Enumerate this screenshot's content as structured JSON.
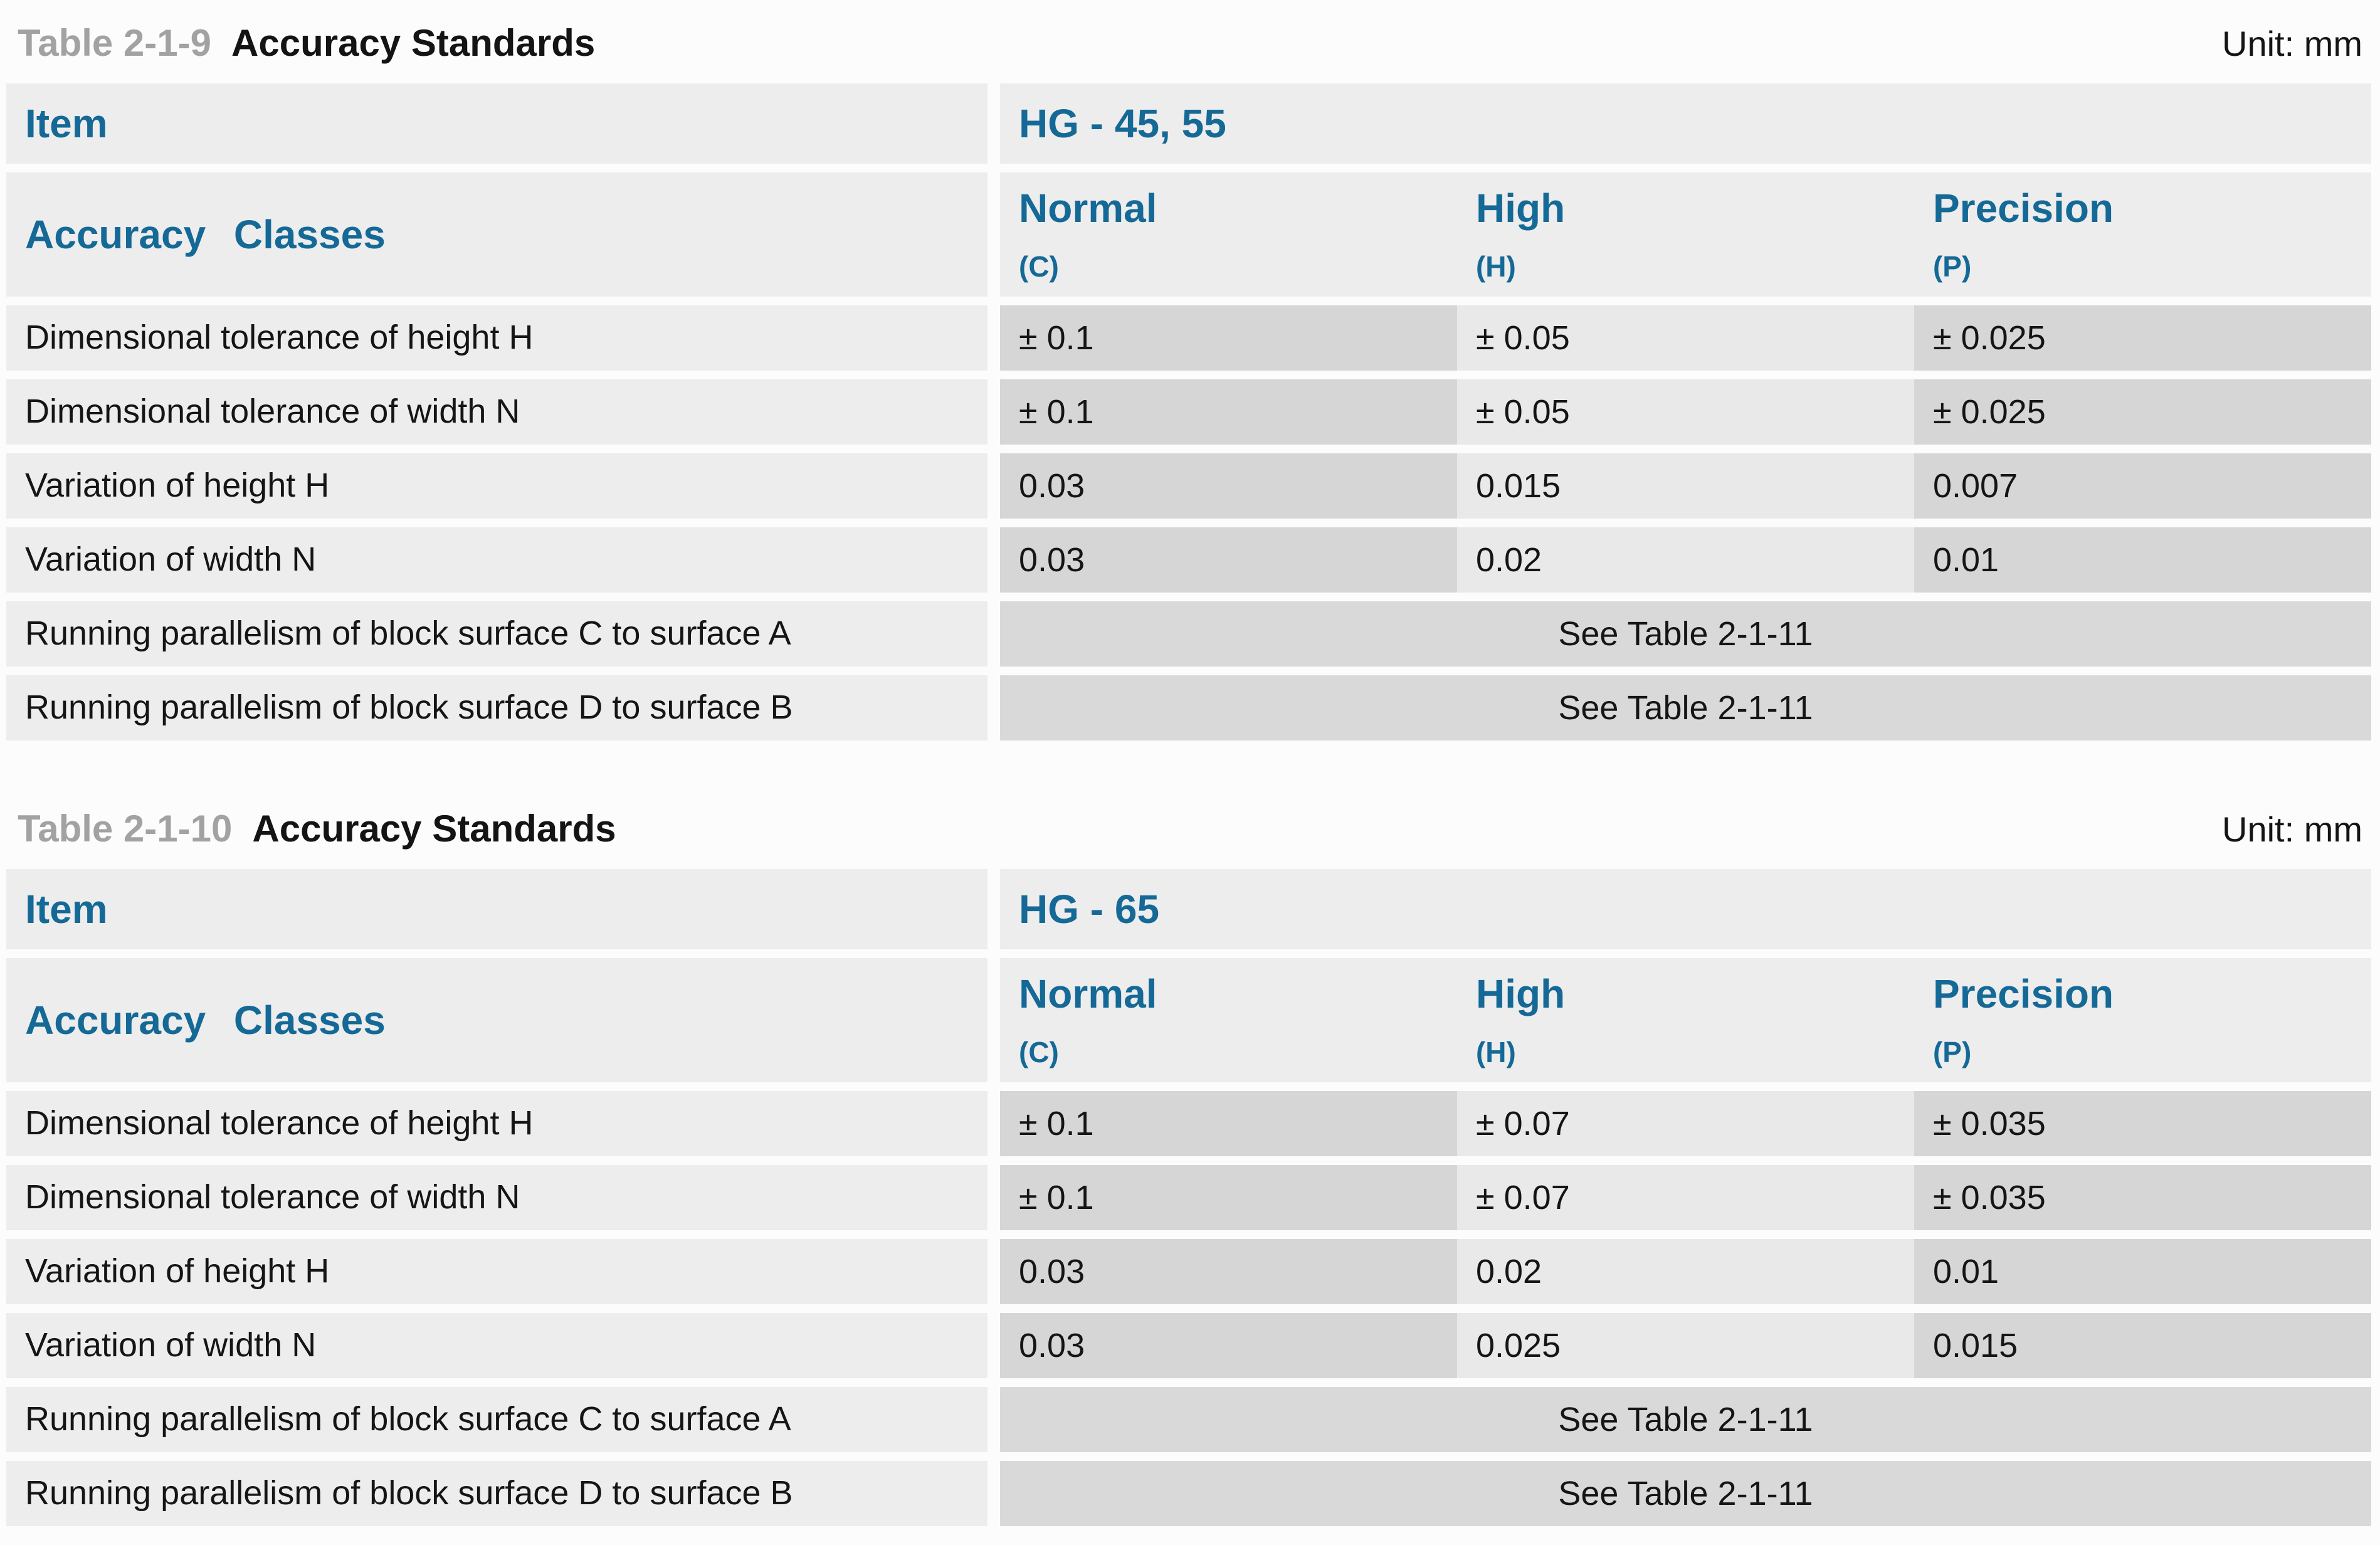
{
  "colors": {
    "accent_blue": "#156996",
    "caption_gray": "#a2a2a2",
    "cell_light": "#ededed",
    "cell_medium": "#e9e9e9",
    "cell_dark": "#d6d6d6",
    "cell_span": "#d9d9d9",
    "text_black": "#151515"
  },
  "tables": [
    {
      "table_no": "Table 2-1-9",
      "title": "Accuracy Standards",
      "unit": "Unit: mm",
      "item_label": "Item",
      "item_value": "HG - 45, 55",
      "classes_label": "Accuracy Classes",
      "columns": [
        {
          "name": "Normal",
          "code": "(C)"
        },
        {
          "name": "High",
          "code": "(H)"
        },
        {
          "name": "Precision",
          "code": "(P)"
        }
      ],
      "rows": [
        {
          "label": "Dimensional tolerance of height H",
          "values": [
            "± 0.1",
            "± 0.05",
            "± 0.025"
          ]
        },
        {
          "label": "Dimensional tolerance of width N",
          "values": [
            "± 0.1",
            "± 0.05",
            "± 0.025"
          ]
        },
        {
          "label": "Variation of height H",
          "values": [
            "0.03",
            "0.015",
            "0.007"
          ]
        },
        {
          "label": "Variation of width N",
          "values": [
            "0.03",
            "0.02",
            "0.01"
          ]
        },
        {
          "label": "Running parallelism of block surface C to surface A",
          "span_value": "See Table 2-1-11"
        },
        {
          "label": "Running parallelism of block surface D to surface B",
          "span_value": "See Table 2-1-11"
        }
      ]
    },
    {
      "table_no": "Table 2-1-10",
      "title": "Accuracy Standards",
      "unit": "Unit: mm",
      "item_label": "Item",
      "item_value": "HG - 65",
      "classes_label": "Accuracy Classes",
      "columns": [
        {
          "name": "Normal",
          "code": "(C)"
        },
        {
          "name": "High",
          "code": "(H)"
        },
        {
          "name": "Precision",
          "code": "(P)"
        }
      ],
      "rows": [
        {
          "label": "Dimensional tolerance of height H",
          "values": [
            "± 0.1",
            "± 0.07",
            "± 0.035"
          ]
        },
        {
          "label": "Dimensional tolerance of width N",
          "values": [
            "± 0.1",
            "± 0.07",
            "± 0.035"
          ]
        },
        {
          "label": "Variation of height H",
          "values": [
            "0.03",
            "0.02",
            "0.01"
          ]
        },
        {
          "label": "Variation of width N",
          "values": [
            "0.03",
            "0.025",
            "0.015"
          ]
        },
        {
          "label": "Running parallelism of block surface C to surface A",
          "span_value": "See Table 2-1-11"
        },
        {
          "label": "Running parallelism of block surface D to surface B",
          "span_value": "See Table 2-1-11"
        }
      ]
    }
  ]
}
